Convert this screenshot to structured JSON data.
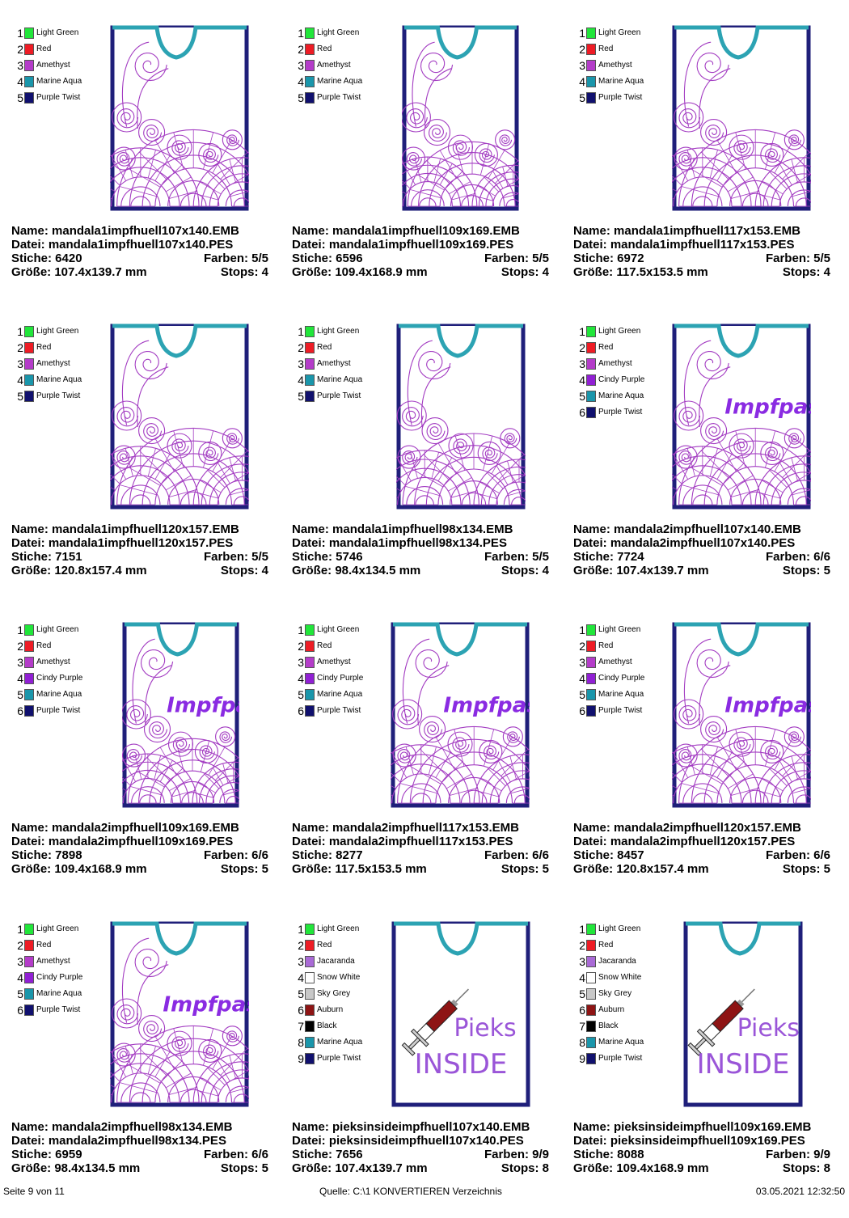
{
  "colors": {
    "Light Green": "#21e63a",
    "Red": "#ee1c25",
    "Amethyst": "#b43cc9",
    "Marine Aqua": "#1a96ab",
    "Purple Twist": "#10106e",
    "Cindy Purple": "#9120d4",
    "Jacaranda": "#a96ad6",
    "Snow White": "#ffffff",
    "Sky Grey": "#c8c8c8",
    "Auburn": "#8e1414",
    "Black": "#000000",
    "outline_dark": "#1f1f7a",
    "outline_teal": "#2ca3b3",
    "mandala_purple": "#a33cc2",
    "impfpass_text": "#8a2be2",
    "pieks_text": "#9a55d8"
  },
  "labels": {
    "name": "Name:",
    "datei": "Datei:",
    "stiche": "Stiche:",
    "farben": "Farben:",
    "groesse": "Größe:",
    "stops": "Stops:"
  },
  "designs": [
    {
      "thread_list": [
        "Light Green",
        "Red",
        "Amethyst",
        "Marine Aqua",
        "Purple Twist"
      ],
      "style": "mandala1",
      "name": "mandala1impfhuell107x140.EMB",
      "file": "mandala1impfhuell107x140.PES",
      "stitches": "6420",
      "colors_count": "5/5",
      "size": "107.4x139.7 mm",
      "stops": "4"
    },
    {
      "thread_list": [
        "Light Green",
        "Red",
        "Amethyst",
        "Marine Aqua",
        "Purple Twist"
      ],
      "style": "mandala1",
      "name": "mandala1impfhuell109x169.EMB",
      "file": "mandala1impfhuell109x169.PES",
      "stitches": "6596",
      "colors_count": "5/5",
      "size": "109.4x168.9 mm",
      "stops": "4"
    },
    {
      "thread_list": [
        "Light Green",
        "Red",
        "Amethyst",
        "Marine Aqua",
        "Purple Twist"
      ],
      "style": "mandala1",
      "name": "mandala1impfhuell117x153.EMB",
      "file": "mandala1impfhuell117x153.PES",
      "stitches": "6972",
      "colors_count": "5/5",
      "size": "117.5x153.5 mm",
      "stops": "4"
    },
    {
      "thread_list": [
        "Light Green",
        "Red",
        "Amethyst",
        "Marine Aqua",
        "Purple Twist"
      ],
      "style": "mandala1",
      "name": "mandala1impfhuell120x157.EMB",
      "file": "mandala1impfhuell120x157.PES",
      "stitches": "7151",
      "colors_count": "5/5",
      "size": "120.8x157.4 mm",
      "stops": "4"
    },
    {
      "thread_list": [
        "Light Green",
        "Red",
        "Amethyst",
        "Marine Aqua",
        "Purple Twist"
      ],
      "style": "mandala1",
      "name": "mandala1impfhuell98x134.EMB",
      "file": "mandala1impfhuell98x134.PES",
      "stitches": "5746",
      "colors_count": "5/5",
      "size": "98.4x134.5 mm",
      "stops": "4"
    },
    {
      "thread_list": [
        "Light Green",
        "Red",
        "Amethyst",
        "Cindy Purple",
        "Marine Aqua",
        "Purple Twist"
      ],
      "style": "mandala2",
      "emb_text": "Impfpass",
      "name": "mandala2impfhuell107x140.EMB",
      "file": "mandala2impfhuell107x140.PES",
      "stitches": "7724",
      "colors_count": "6/6",
      "size": "107.4x139.7 mm",
      "stops": "5"
    },
    {
      "thread_list": [
        "Light Green",
        "Red",
        "Amethyst",
        "Cindy Purple",
        "Marine Aqua",
        "Purple Twist"
      ],
      "style": "mandala2",
      "emb_text": "Impfpass",
      "name": "mandala2impfhuell109x169.EMB",
      "file": "mandala2impfhuell109x169.PES",
      "stitches": "7898",
      "colors_count": "6/6",
      "size": "109.4x168.9 mm",
      "stops": "5"
    },
    {
      "thread_list": [
        "Light Green",
        "Red",
        "Amethyst",
        "Cindy Purple",
        "Marine Aqua",
        "Purple Twist"
      ],
      "style": "mandala2",
      "emb_text": "Impfpass",
      "name": "mandala2impfhuell117x153.EMB",
      "file": "mandala2impfhuell117x153.PES",
      "stitches": "8277",
      "colors_count": "6/6",
      "size": "117.5x153.5 mm",
      "stops": "5"
    },
    {
      "thread_list": [
        "Light Green",
        "Red",
        "Amethyst",
        "Cindy Purple",
        "Marine Aqua",
        "Purple Twist"
      ],
      "style": "mandala2",
      "emb_text": "Impfpass",
      "name": "mandala2impfhuell120x157.EMB",
      "file": "mandala2impfhuell120x157.PES",
      "stitches": "8457",
      "colors_count": "6/6",
      "size": "120.8x157.4 mm",
      "stops": "5"
    },
    {
      "thread_list": [
        "Light Green",
        "Red",
        "Amethyst",
        "Cindy Purple",
        "Marine Aqua",
        "Purple Twist"
      ],
      "style": "mandala2",
      "emb_text": "Impfpass",
      "name": "mandala2impfhuell98x134.EMB",
      "file": "mandala2impfhuell98x134.PES",
      "stitches": "6959",
      "colors_count": "6/6",
      "size": "98.4x134.5 mm",
      "stops": "5"
    },
    {
      "thread_list": [
        "Light Green",
        "Red",
        "Jacaranda",
        "Snow White",
        "Sky Grey",
        "Auburn",
        "Black",
        "Marine Aqua",
        "Purple Twist"
      ],
      "style": "pieks",
      "emb_text": "Pieks",
      "emb_text2": "INSIDE",
      "name": "pieksinsideimpfhuell107x140.EMB",
      "file": "pieksinsideimpfhuell107x140.PES",
      "stitches": "7656",
      "colors_count": "9/9",
      "size": "107.4x139.7 mm",
      "stops": "8"
    },
    {
      "thread_list": [
        "Light Green",
        "Red",
        "Jacaranda",
        "Snow White",
        "Sky Grey",
        "Auburn",
        "Black",
        "Marine Aqua",
        "Purple Twist"
      ],
      "style": "pieks",
      "emb_text": "Pieks",
      "emb_text2": "INSIDE",
      "name": "pieksinsideimpfhuell109x169.EMB",
      "file": "pieksinsideimpfhuell109x169.PES",
      "stitches": "8088",
      "colors_count": "9/9",
      "size": "109.4x168.9 mm",
      "stops": "8"
    }
  ],
  "footer": {
    "page": "Seite 9 von 11",
    "source": "Quelle: C:\\1 KONVERTIEREN Verzeichnis",
    "date": "03.05.2021 12:32:50"
  }
}
